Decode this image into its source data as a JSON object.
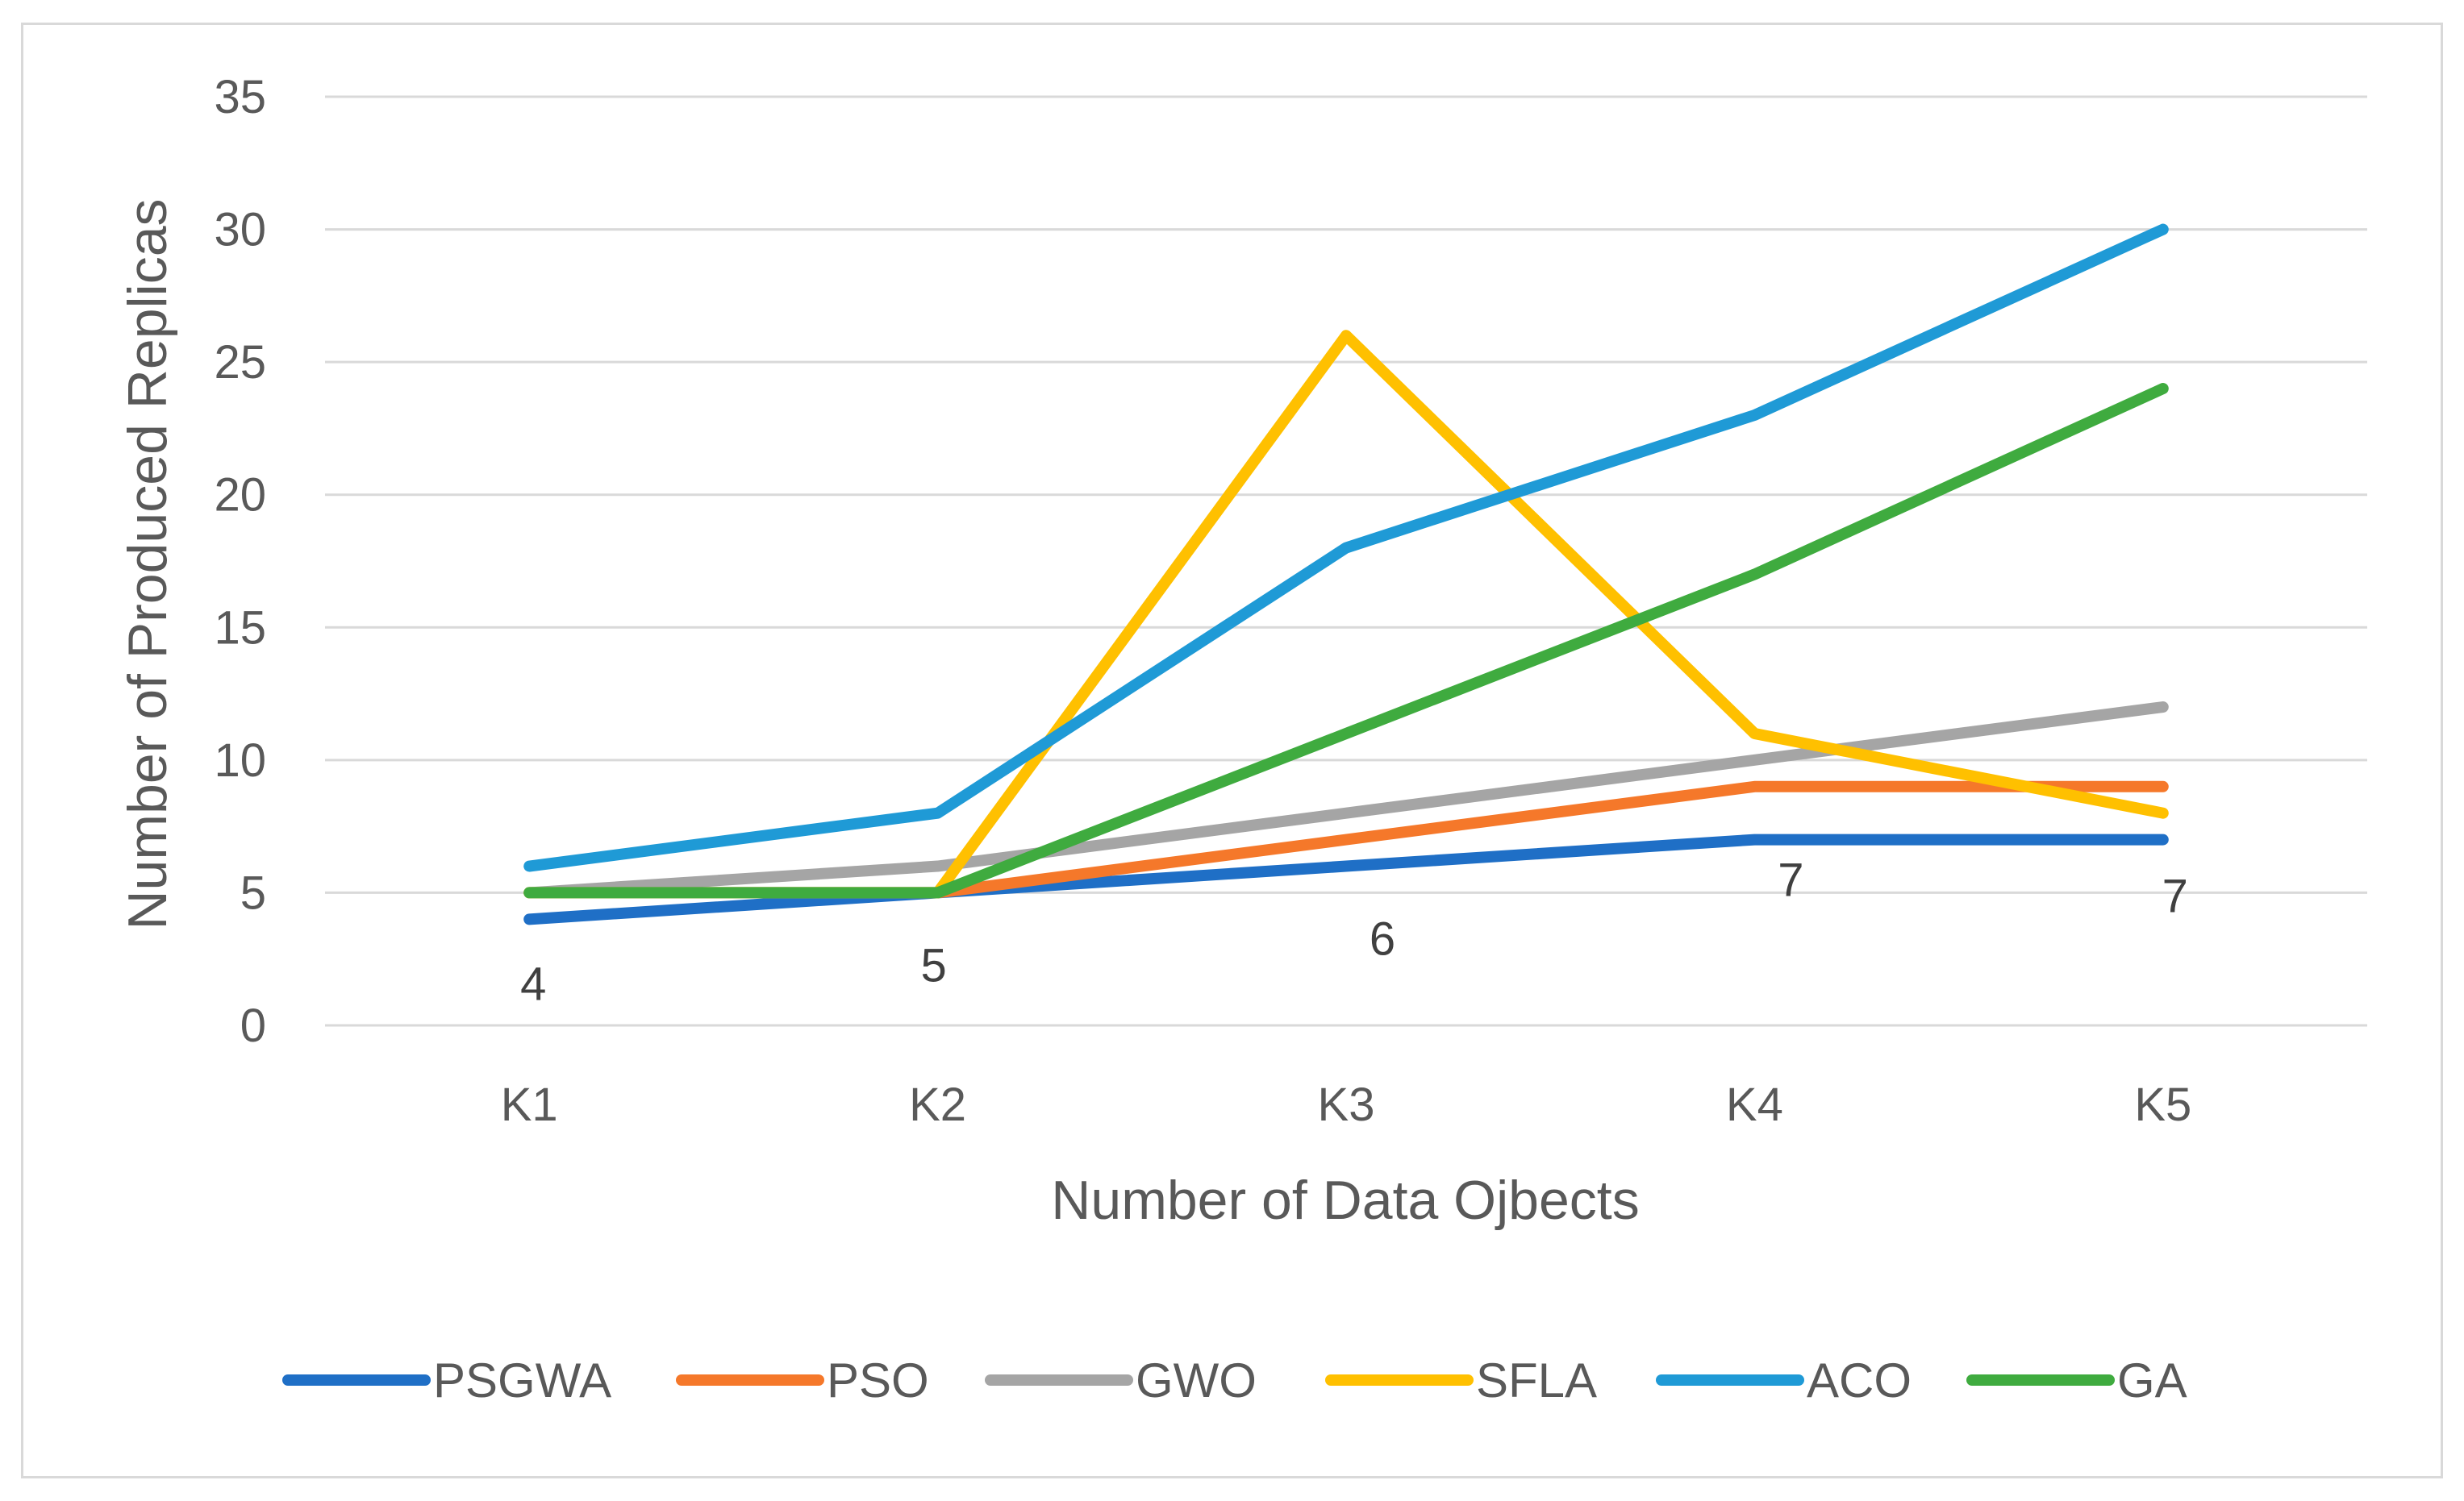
{
  "chart_data": {
    "type": "line",
    "title": "",
    "xlabel": "Number of Data Ojbects",
    "ylabel": "Number of Produced Replicas",
    "categories": [
      "K1",
      "K2",
      "K3",
      "K4",
      "K5"
    ],
    "ylim": [
      0,
      35
    ],
    "yticks": [
      0,
      5,
      10,
      15,
      20,
      25,
      30,
      35
    ],
    "grid": true,
    "legend_position": "bottom",
    "series": [
      {
        "name": "PSGWA",
        "color": "#1f6fc6",
        "values": [
          4,
          5,
          6,
          7,
          7
        ],
        "data_labels": [
          "4",
          "5",
          "6",
          "7",
          "7"
        ]
      },
      {
        "name": "PSO",
        "color": "#f5782a",
        "values": [
          5,
          5,
          7,
          9,
          9
        ]
      },
      {
        "name": "GWO",
        "color": "#a5a5a5",
        "values": [
          5,
          6,
          8,
          10,
          12
        ]
      },
      {
        "name": "SFLA",
        "color": "#ffc000",
        "values": [
          5,
          5,
          26,
          11,
          8
        ]
      },
      {
        "name": "ACO",
        "color": "#1f9ad6",
        "values": [
          6,
          8,
          18,
          23,
          30
        ]
      },
      {
        "name": "GA",
        "color": "#3fab3f",
        "values": [
          5,
          5,
          11,
          17,
          24
        ]
      }
    ]
  }
}
